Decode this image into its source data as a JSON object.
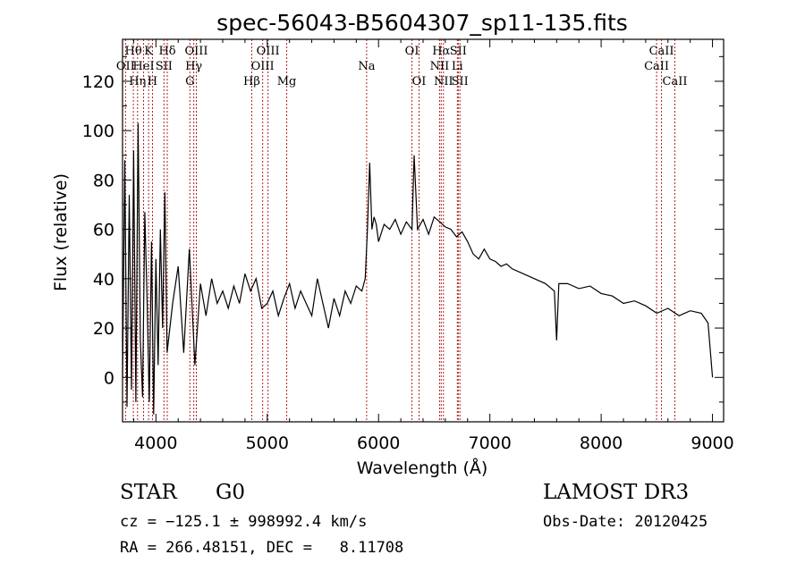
{
  "chart_data": {
    "type": "line",
    "title": "spec-56043-B5604307_sp11-135.fits",
    "xlabel": "Wavelength (Å)",
    "ylabel": "Flux (relative)",
    "xlim": [
      3700,
      9100
    ],
    "ylim": [
      -18,
      137
    ],
    "xticks": [
      4000,
      5000,
      6000,
      7000,
      8000,
      9000
    ],
    "yticks": [
      0,
      20,
      40,
      60,
      80,
      100,
      120
    ],
    "series": [
      {
        "name": "spectrum",
        "x": [
          3700,
          3720,
          3740,
          3760,
          3780,
          3800,
          3820,
          3840,
          3860,
          3880,
          3900,
          3920,
          3940,
          3960,
          3980,
          4000,
          4020,
          4040,
          4060,
          4080,
          4100,
          4150,
          4200,
          4250,
          4300,
          4350,
          4400,
          4450,
          4500,
          4550,
          4600,
          4650,
          4700,
          4750,
          4800,
          4850,
          4900,
          4950,
          5000,
          5050,
          5100,
          5150,
          5200,
          5250,
          5300,
          5350,
          5400,
          5450,
          5500,
          5550,
          5600,
          5650,
          5700,
          5750,
          5800,
          5850,
          5880,
          5900,
          5920,
          5940,
          5960,
          5980,
          6000,
          6050,
          6100,
          6150,
          6200,
          6250,
          6300,
          6320,
          6350,
          6400,
          6450,
          6500,
          6550,
          6600,
          6650,
          6700,
          6750,
          6800,
          6850,
          6900,
          6950,
          7000,
          7050,
          7100,
          7150,
          7200,
          7300,
          7400,
          7500,
          7580,
          7600,
          7620,
          7700,
          7800,
          7900,
          8000,
          8100,
          8200,
          8300,
          8400,
          8500,
          8600,
          8700,
          8800,
          8900,
          8960,
          9000
        ],
        "y": [
          0,
          88,
          -12,
          74,
          -5,
          92,
          -10,
          103,
          15,
          -8,
          67,
          32,
          -10,
          55,
          -15,
          48,
          5,
          60,
          20,
          75,
          10,
          30,
          45,
          10,
          52,
          5,
          38,
          25,
          40,
          30,
          35,
          28,
          37,
          30,
          42,
          35,
          40,
          28,
          30,
          35,
          25,
          32,
          38,
          28,
          35,
          30,
          25,
          40,
          30,
          20,
          32,
          25,
          35,
          30,
          37,
          35,
          40,
          60,
          87,
          60,
          65,
          62,
          55,
          62,
          60,
          64,
          58,
          63,
          60,
          90,
          60,
          64,
          58,
          65,
          63,
          61,
          60,
          57,
          59,
          55,
          50,
          48,
          52,
          48,
          47,
          45,
          46,
          44,
          42,
          40,
          38,
          35,
          15,
          38,
          38,
          36,
          37,
          34,
          33,
          30,
          31,
          29,
          26,
          28,
          25,
          27,
          26,
          22,
          0
        ]
      }
    ],
    "annotations": [
      {
        "label": "Hθ",
        "x": 3797,
        "row": 1
      },
      {
        "label": "OII",
        "x": 3727,
        "row": 2
      },
      {
        "label": "Hη",
        "x": 3835,
        "row": 3
      },
      {
        "label": "K",
        "x": 3934,
        "row": 1
      },
      {
        "label": "HeI",
        "x": 3889,
        "row": 2
      },
      {
        "label": "H",
        "x": 3969,
        "row": 3
      },
      {
        "label": "Hδ",
        "x": 4102,
        "row": 1
      },
      {
        "label": "SII",
        "x": 4072,
        "row": 2
      },
      {
        "label": "OIII",
        "x": 4363,
        "row": 1
      },
      {
        "label": "Hγ",
        "x": 4340,
        "row": 2
      },
      {
        "label": "G",
        "x": 4305,
        "row": 3
      },
      {
        "label": "Hβ",
        "x": 4861,
        "row": 3
      },
      {
        "label": "OIII",
        "x": 5007,
        "row": 1
      },
      {
        "label": "OIII",
        "x": 4959,
        "row": 2
      },
      {
        "label": "Mg",
        "x": 5175,
        "row": 3
      },
      {
        "label": "Na",
        "x": 5893,
        "row": 2
      },
      {
        "label": "OI",
        "x": 6300,
        "row": 1
      },
      {
        "label": "OI",
        "x": 6364,
        "row": 3
      },
      {
        "label": "Hα",
        "x": 6563,
        "row": 1
      },
      {
        "label": "NII",
        "x": 6548,
        "row": 2
      },
      {
        "label": "NII",
        "x": 6583,
        "row": 3
      },
      {
        "label": "SII",
        "x": 6716,
        "row": 1
      },
      {
        "label": "Li",
        "x": 6708,
        "row": 2
      },
      {
        "label": "SII",
        "x": 6731,
        "row": 3
      },
      {
        "label": "CaII",
        "x": 8542,
        "row": 1
      },
      {
        "label": "CaII",
        "x": 8498,
        "row": 2
      },
      {
        "label": "CaII",
        "x": 8662,
        "row": 3
      }
    ]
  },
  "info": {
    "object_class": "STAR",
    "subclass": "G0",
    "survey": "LAMOST DR3",
    "cz": "cz = −125.1 ± 998992.4 km/s",
    "obs_date": "Obs-Date: 20120425",
    "coords": "RA = 266.48151, DEC =   8.11708"
  },
  "colors": {
    "line_markers": "#b22222",
    "spectrum": "#000000"
  }
}
